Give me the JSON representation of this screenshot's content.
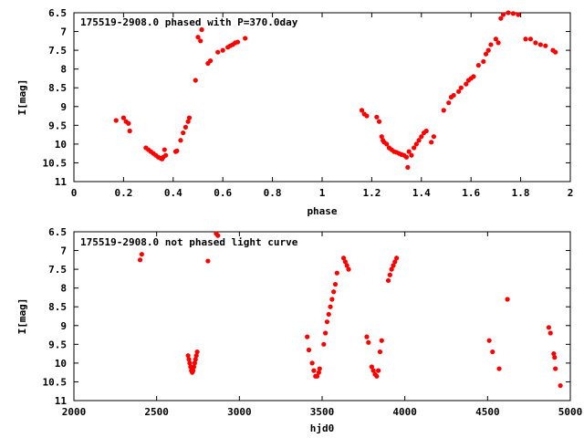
{
  "chart_data": [
    {
      "type": "scatter",
      "title": "175519-2908.0 phased with P=370.0day",
      "xlabel": "phase",
      "ylabel": "I[mag]",
      "xlim": [
        0,
        2
      ],
      "ylim": [
        6.5,
        11
      ],
      "y_inverted": true,
      "xticks": [
        "0",
        "0.2",
        "0.4",
        "0.6",
        "0.8",
        "1",
        "1.2",
        "1.4",
        "1.6",
        "1.8",
        "2"
      ],
      "xtick_values": [
        0,
        0.2,
        0.4,
        0.6,
        0.8,
        1.0,
        1.2,
        1.4,
        1.6,
        1.8,
        2.0
      ],
      "yticks": [
        "6.5",
        "7",
        "7.5",
        "8",
        "8.5",
        "9",
        "9.5",
        "10",
        "10.5",
        "11"
      ],
      "ytick_values": [
        6.5,
        7,
        7.5,
        8,
        8.5,
        9,
        9.5,
        10,
        10.5,
        11
      ],
      "marker_color": "#ff0000",
      "points": [
        [
          0.17,
          9.37
        ],
        [
          0.2,
          9.3
        ],
        [
          0.21,
          9.4
        ],
        [
          0.22,
          9.45
        ],
        [
          0.225,
          9.65
        ],
        [
          0.29,
          10.1
        ],
        [
          0.3,
          10.15
        ],
        [
          0.31,
          10.2
        ],
        [
          0.32,
          10.25
        ],
        [
          0.33,
          10.3
        ],
        [
          0.34,
          10.35
        ],
        [
          0.35,
          10.38
        ],
        [
          0.355,
          10.4
        ],
        [
          0.36,
          10.35
        ],
        [
          0.365,
          10.15
        ],
        [
          0.37,
          10.3
        ],
        [
          0.41,
          10.2
        ],
        [
          0.415,
          10.18
        ],
        [
          0.43,
          9.9
        ],
        [
          0.44,
          9.7
        ],
        [
          0.45,
          9.55
        ],
        [
          0.46,
          9.4
        ],
        [
          0.465,
          9.3
        ],
        [
          0.49,
          8.3
        ],
        [
          0.5,
          7.15
        ],
        [
          0.51,
          7.25
        ],
        [
          0.515,
          6.95
        ],
        [
          0.54,
          7.85
        ],
        [
          0.55,
          7.78
        ],
        [
          0.58,
          7.55
        ],
        [
          0.6,
          7.5
        ],
        [
          0.62,
          7.42
        ],
        [
          0.63,
          7.38
        ],
        [
          0.64,
          7.35
        ],
        [
          0.65,
          7.3
        ],
        [
          0.66,
          7.28
        ],
        [
          0.69,
          7.18
        ],
        [
          1.16,
          9.1
        ],
        [
          1.17,
          9.2
        ],
        [
          1.18,
          9.25
        ],
        [
          1.22,
          9.28
        ],
        [
          1.23,
          9.4
        ],
        [
          1.24,
          9.8
        ],
        [
          1.245,
          9.9
        ],
        [
          1.25,
          9.95
        ],
        [
          1.26,
          10.0
        ],
        [
          1.27,
          10.1
        ],
        [
          1.28,
          10.15
        ],
        [
          1.29,
          10.2
        ],
        [
          1.3,
          10.22
        ],
        [
          1.31,
          10.25
        ],
        [
          1.32,
          10.28
        ],
        [
          1.33,
          10.3
        ],
        [
          1.34,
          10.35
        ],
        [
          1.345,
          10.62
        ],
        [
          1.35,
          10.2
        ],
        [
          1.36,
          10.3
        ],
        [
          1.37,
          10.1
        ],
        [
          1.38,
          10.0
        ],
        [
          1.39,
          9.9
        ],
        [
          1.4,
          9.8
        ],
        [
          1.41,
          9.7
        ],
        [
          1.42,
          9.65
        ],
        [
          1.44,
          9.95
        ],
        [
          1.45,
          9.8
        ],
        [
          1.49,
          9.1
        ],
        [
          1.51,
          8.9
        ],
        [
          1.52,
          8.75
        ],
        [
          1.53,
          8.7
        ],
        [
          1.55,
          8.6
        ],
        [
          1.56,
          8.5
        ],
        [
          1.58,
          8.4
        ],
        [
          1.59,
          8.3
        ],
        [
          1.6,
          8.25
        ],
        [
          1.61,
          8.2
        ],
        [
          1.63,
          7.9
        ],
        [
          1.65,
          7.8
        ],
        [
          1.66,
          7.6
        ],
        [
          1.67,
          7.5
        ],
        [
          1.68,
          7.35
        ],
        [
          1.7,
          7.2
        ],
        [
          1.71,
          7.3
        ],
        [
          1.72,
          6.65
        ],
        [
          1.73,
          6.55
        ],
        [
          1.75,
          6.5
        ],
        [
          1.77,
          6.52
        ],
        [
          1.79,
          6.55
        ],
        [
          1.82,
          7.2
        ],
        [
          1.84,
          7.2
        ],
        [
          1.86,
          7.3
        ],
        [
          1.88,
          7.35
        ],
        [
          1.9,
          7.38
        ],
        [
          1.93,
          7.5
        ],
        [
          1.94,
          7.55
        ]
      ]
    },
    {
      "type": "scatter",
      "title": "175519-2908.0 not phased light curve",
      "xlabel": "hjd0",
      "ylabel": "I[mag]",
      "xlim": [
        2000,
        5000
      ],
      "ylim": [
        6.5,
        11
      ],
      "y_inverted": true,
      "xticks": [
        "2000",
        "2500",
        "3000",
        "3500",
        "4000",
        "4500",
        "5000"
      ],
      "xtick_values": [
        2000,
        2500,
        3000,
        3500,
        4000,
        4500,
        5000
      ],
      "yticks": [
        "6.5",
        "7",
        "7.5",
        "8",
        "8.5",
        "9",
        "9.5",
        "10",
        "10.5",
        "11"
      ],
      "ytick_values": [
        6.5,
        7,
        7.5,
        8,
        8.5,
        9,
        9.5,
        10,
        10.5,
        11
      ],
      "marker_color": "#ff0000",
      "points": [
        [
          2400,
          7.25
        ],
        [
          2410,
          7.1
        ],
        [
          2690,
          9.8
        ],
        [
          2695,
          9.9
        ],
        [
          2700,
          10.0
        ],
        [
          2705,
          10.1
        ],
        [
          2710,
          10.2
        ],
        [
          2715,
          10.25
        ],
        [
          2720,
          10.2
        ],
        [
          2725,
          10.1
        ],
        [
          2730,
          10.0
        ],
        [
          2735,
          9.9
        ],
        [
          2740,
          9.8
        ],
        [
          2745,
          9.7
        ],
        [
          2810,
          7.28
        ],
        [
          2860,
          6.55
        ],
        [
          2870,
          6.6
        ],
        [
          3410,
          9.3
        ],
        [
          3420,
          9.65
        ],
        [
          3440,
          10.0
        ],
        [
          3450,
          10.2
        ],
        [
          3460,
          10.35
        ],
        [
          3470,
          10.35
        ],
        [
          3480,
          10.25
        ],
        [
          3485,
          10.15
        ],
        [
          3510,
          9.5
        ],
        [
          3520,
          9.2
        ],
        [
          3530,
          8.9
        ],
        [
          3540,
          8.7
        ],
        [
          3550,
          8.5
        ],
        [
          3560,
          8.3
        ],
        [
          3570,
          8.1
        ],
        [
          3580,
          7.9
        ],
        [
          3590,
          7.6
        ],
        [
          3630,
          7.2
        ],
        [
          3640,
          7.3
        ],
        [
          3650,
          7.4
        ],
        [
          3660,
          7.5
        ],
        [
          3770,
          9.3
        ],
        [
          3780,
          9.45
        ],
        [
          3800,
          10.1
        ],
        [
          3810,
          10.2
        ],
        [
          3820,
          10.3
        ],
        [
          3830,
          10.35
        ],
        [
          3840,
          10.2
        ],
        [
          3850,
          9.7
        ],
        [
          3860,
          9.4
        ],
        [
          3900,
          7.8
        ],
        [
          3910,
          7.65
        ],
        [
          3920,
          7.5
        ],
        [
          3930,
          7.4
        ],
        [
          3940,
          7.3
        ],
        [
          3950,
          7.2
        ],
        [
          4510,
          9.4
        ],
        [
          4530,
          9.7
        ],
        [
          4570,
          10.15
        ],
        [
          4620,
          8.3
        ],
        [
          4870,
          9.05
        ],
        [
          4880,
          9.2
        ],
        [
          4900,
          9.75
        ],
        [
          4905,
          9.85
        ],
        [
          4910,
          10.15
        ],
        [
          4940,
          10.6
        ]
      ]
    }
  ]
}
